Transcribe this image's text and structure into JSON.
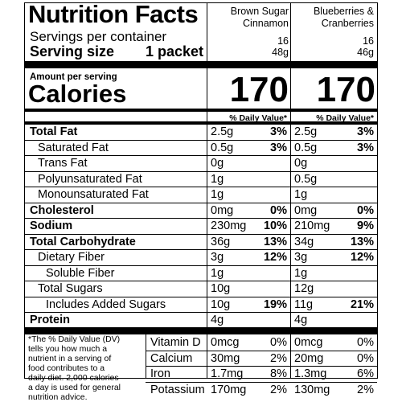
{
  "title": "Nutrition Facts",
  "columns": [
    {
      "name_line1": "Brown Sugar",
      "name_line2": "Cinnamon",
      "servings": "16",
      "size": "48g",
      "calories": "170"
    },
    {
      "name_line1": "Blueberries &",
      "name_line2": "Cranberries",
      "servings": "16",
      "size": "46g",
      "calories": "170"
    }
  ],
  "servings_label": "Servings per container",
  "serving_size_label": "Serving size",
  "serving_size_value": "1 packet",
  "amount_per_serving": "Amount per serving",
  "calories_label": "Calories",
  "dv_header": "% Daily Value*",
  "nutrients": [
    {
      "label": "Total Fat",
      "bold": true,
      "c1_amt": "2.5g",
      "c1_dv": "3%",
      "c2_amt": "2.5g",
      "c2_dv": "3%"
    },
    {
      "label": "Saturated Fat",
      "c1_amt": "0.5g",
      "c1_dv": "3%",
      "c2_amt": "0.5g",
      "c2_dv": "3%"
    },
    {
      "label": "Trans Fat",
      "c1_amt": "0g",
      "c1_dv": "",
      "c2_amt": "0g",
      "c2_dv": ""
    },
    {
      "label": "Polyunsaturated Fat",
      "c1_amt": "1g",
      "c1_dv": "",
      "c2_amt": "0.5g",
      "c2_dv": ""
    },
    {
      "label": "Monounsaturated Fat",
      "c1_amt": "1g",
      "c1_dv": "",
      "c2_amt": "1g",
      "c2_dv": ""
    },
    {
      "label": "Cholesterol",
      "bold": true,
      "c1_amt": "0mg",
      "c1_dv": "0%",
      "c2_amt": "0mg",
      "c2_dv": "0%"
    },
    {
      "label": "Sodium",
      "bold": true,
      "c1_amt": "230mg",
      "c1_dv": "10%",
      "c2_amt": "210mg",
      "c2_dv": "9%"
    },
    {
      "label": "Total Carbohydrate",
      "bold": true,
      "c1_amt": "36g",
      "c1_dv": "13%",
      "c2_amt": "34g",
      "c2_dv": "13%"
    },
    {
      "label": "Dietary Fiber",
      "c1_amt": "3g",
      "c1_dv": "12%",
      "c2_amt": "3g",
      "c2_dv": "12%"
    },
    {
      "label": "Soluble Fiber",
      "c1_amt": "1g",
      "c1_dv": "",
      "c2_amt": "1g",
      "c2_dv": ""
    },
    {
      "label": "Total Sugars",
      "c1_amt": "10g",
      "c1_dv": "",
      "c2_amt": "12g",
      "c2_dv": ""
    },
    {
      "label": "Includes Added Sugars",
      "c1_amt": "10g",
      "c1_dv": "19%",
      "c2_amt": "11g",
      "c2_dv": "21%"
    },
    {
      "label": "Protein",
      "bold": true,
      "c1_amt": "4g",
      "c1_dv": "",
      "c2_amt": "4g",
      "c2_dv": ""
    }
  ],
  "footnote_lines": [
    "*The % Daily Value (DV)",
    "tells you how much a",
    "nutrient in a serving of",
    "food contributes to a",
    "daily diet. 2,000 calories",
    "a day is used for general",
    "nutrition advice."
  ],
  "vitamins": [
    {
      "label": "Vitamin D",
      "c1_amt": "0mcg",
      "c1_dv": "0%",
      "c2_amt": "0mcg",
      "c2_dv": "0%"
    },
    {
      "label": "Calcium",
      "c1_amt": "30mg",
      "c1_dv": "2%",
      "c2_amt": "20mg",
      "c2_dv": "0%"
    },
    {
      "label": "Iron",
      "c1_amt": "1.7mg",
      "c1_dv": "8%",
      "c2_amt": "1.3mg",
      "c2_dv": "6%"
    },
    {
      "label": "Potassium",
      "c1_amt": "170mg",
      "c1_dv": "2%",
      "c2_amt": "130mg",
      "c2_dv": "2%"
    }
  ]
}
